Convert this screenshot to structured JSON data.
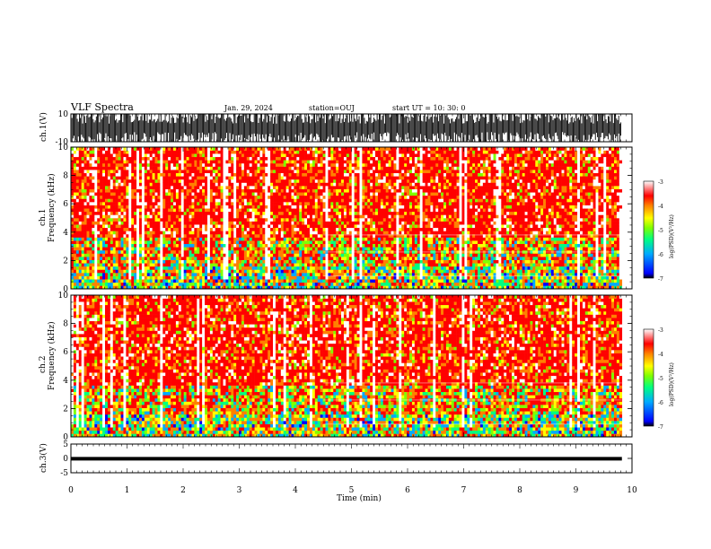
{
  "header": {
    "title": "VLF Spectra",
    "date": "Jan. 29, 2024",
    "station": "station=OUJ",
    "start": "start  UT =   10: 30: 0"
  },
  "chart_data": [
    {
      "type": "line",
      "name": "ch1-waveform",
      "ylabel": "ch.1(V)",
      "ylim": [
        -10,
        10
      ],
      "yticks": [
        "10",
        "-10"
      ],
      "xlim": [
        0,
        10
      ]
    },
    {
      "type": "heatmap",
      "name": "ch1-spectrogram",
      "ylabel_top": "ch.1",
      "ylabel": "Frequency (kHz)",
      "ylim": [
        0,
        10
      ],
      "yticks": [
        "0",
        "2",
        "4",
        "6",
        "8",
        "10"
      ],
      "xlim": [
        0,
        10
      ],
      "colorbar": {
        "label": "log(PSD)(V²/Hz)",
        "range": [
          -7,
          -3
        ],
        "ticks": [
          "-3",
          "-4",
          "-5",
          "-6",
          "-7"
        ]
      }
    },
    {
      "type": "heatmap",
      "name": "ch2-spectrogram",
      "ylabel_top": "ch.2",
      "ylabel": "Frequency (kHz)",
      "ylim": [
        0,
        10
      ],
      "yticks": [
        "0",
        "2",
        "4",
        "6",
        "8",
        "10"
      ],
      "xlim": [
        0,
        10
      ],
      "colorbar": {
        "label": "log(PSD)(V²/Hz)",
        "range": [
          -7,
          -3
        ],
        "ticks": [
          "-3",
          "-4",
          "-5",
          "-6",
          "-7"
        ]
      }
    },
    {
      "type": "line",
      "name": "ch3-waveform",
      "ylabel": "ch.3(V)",
      "ylim": [
        -5,
        5
      ],
      "yticks": [
        "5",
        "0",
        "-5"
      ],
      "xlim": [
        0,
        10
      ],
      "level": -0.1
    }
  ],
  "xaxis": {
    "label": "Time  (min)",
    "ticks": [
      "0",
      "1",
      "2",
      "3",
      "4",
      "5",
      "6",
      "7",
      "8",
      "9",
      "10"
    ],
    "data_end": 9.82
  },
  "colors": {
    "colormap": [
      "#000000",
      "#0000ff",
      "#00aaff",
      "#00ff80",
      "#80ff00",
      "#ffff00",
      "#ff8000",
      "#ff0000",
      "#ffffff"
    ]
  }
}
